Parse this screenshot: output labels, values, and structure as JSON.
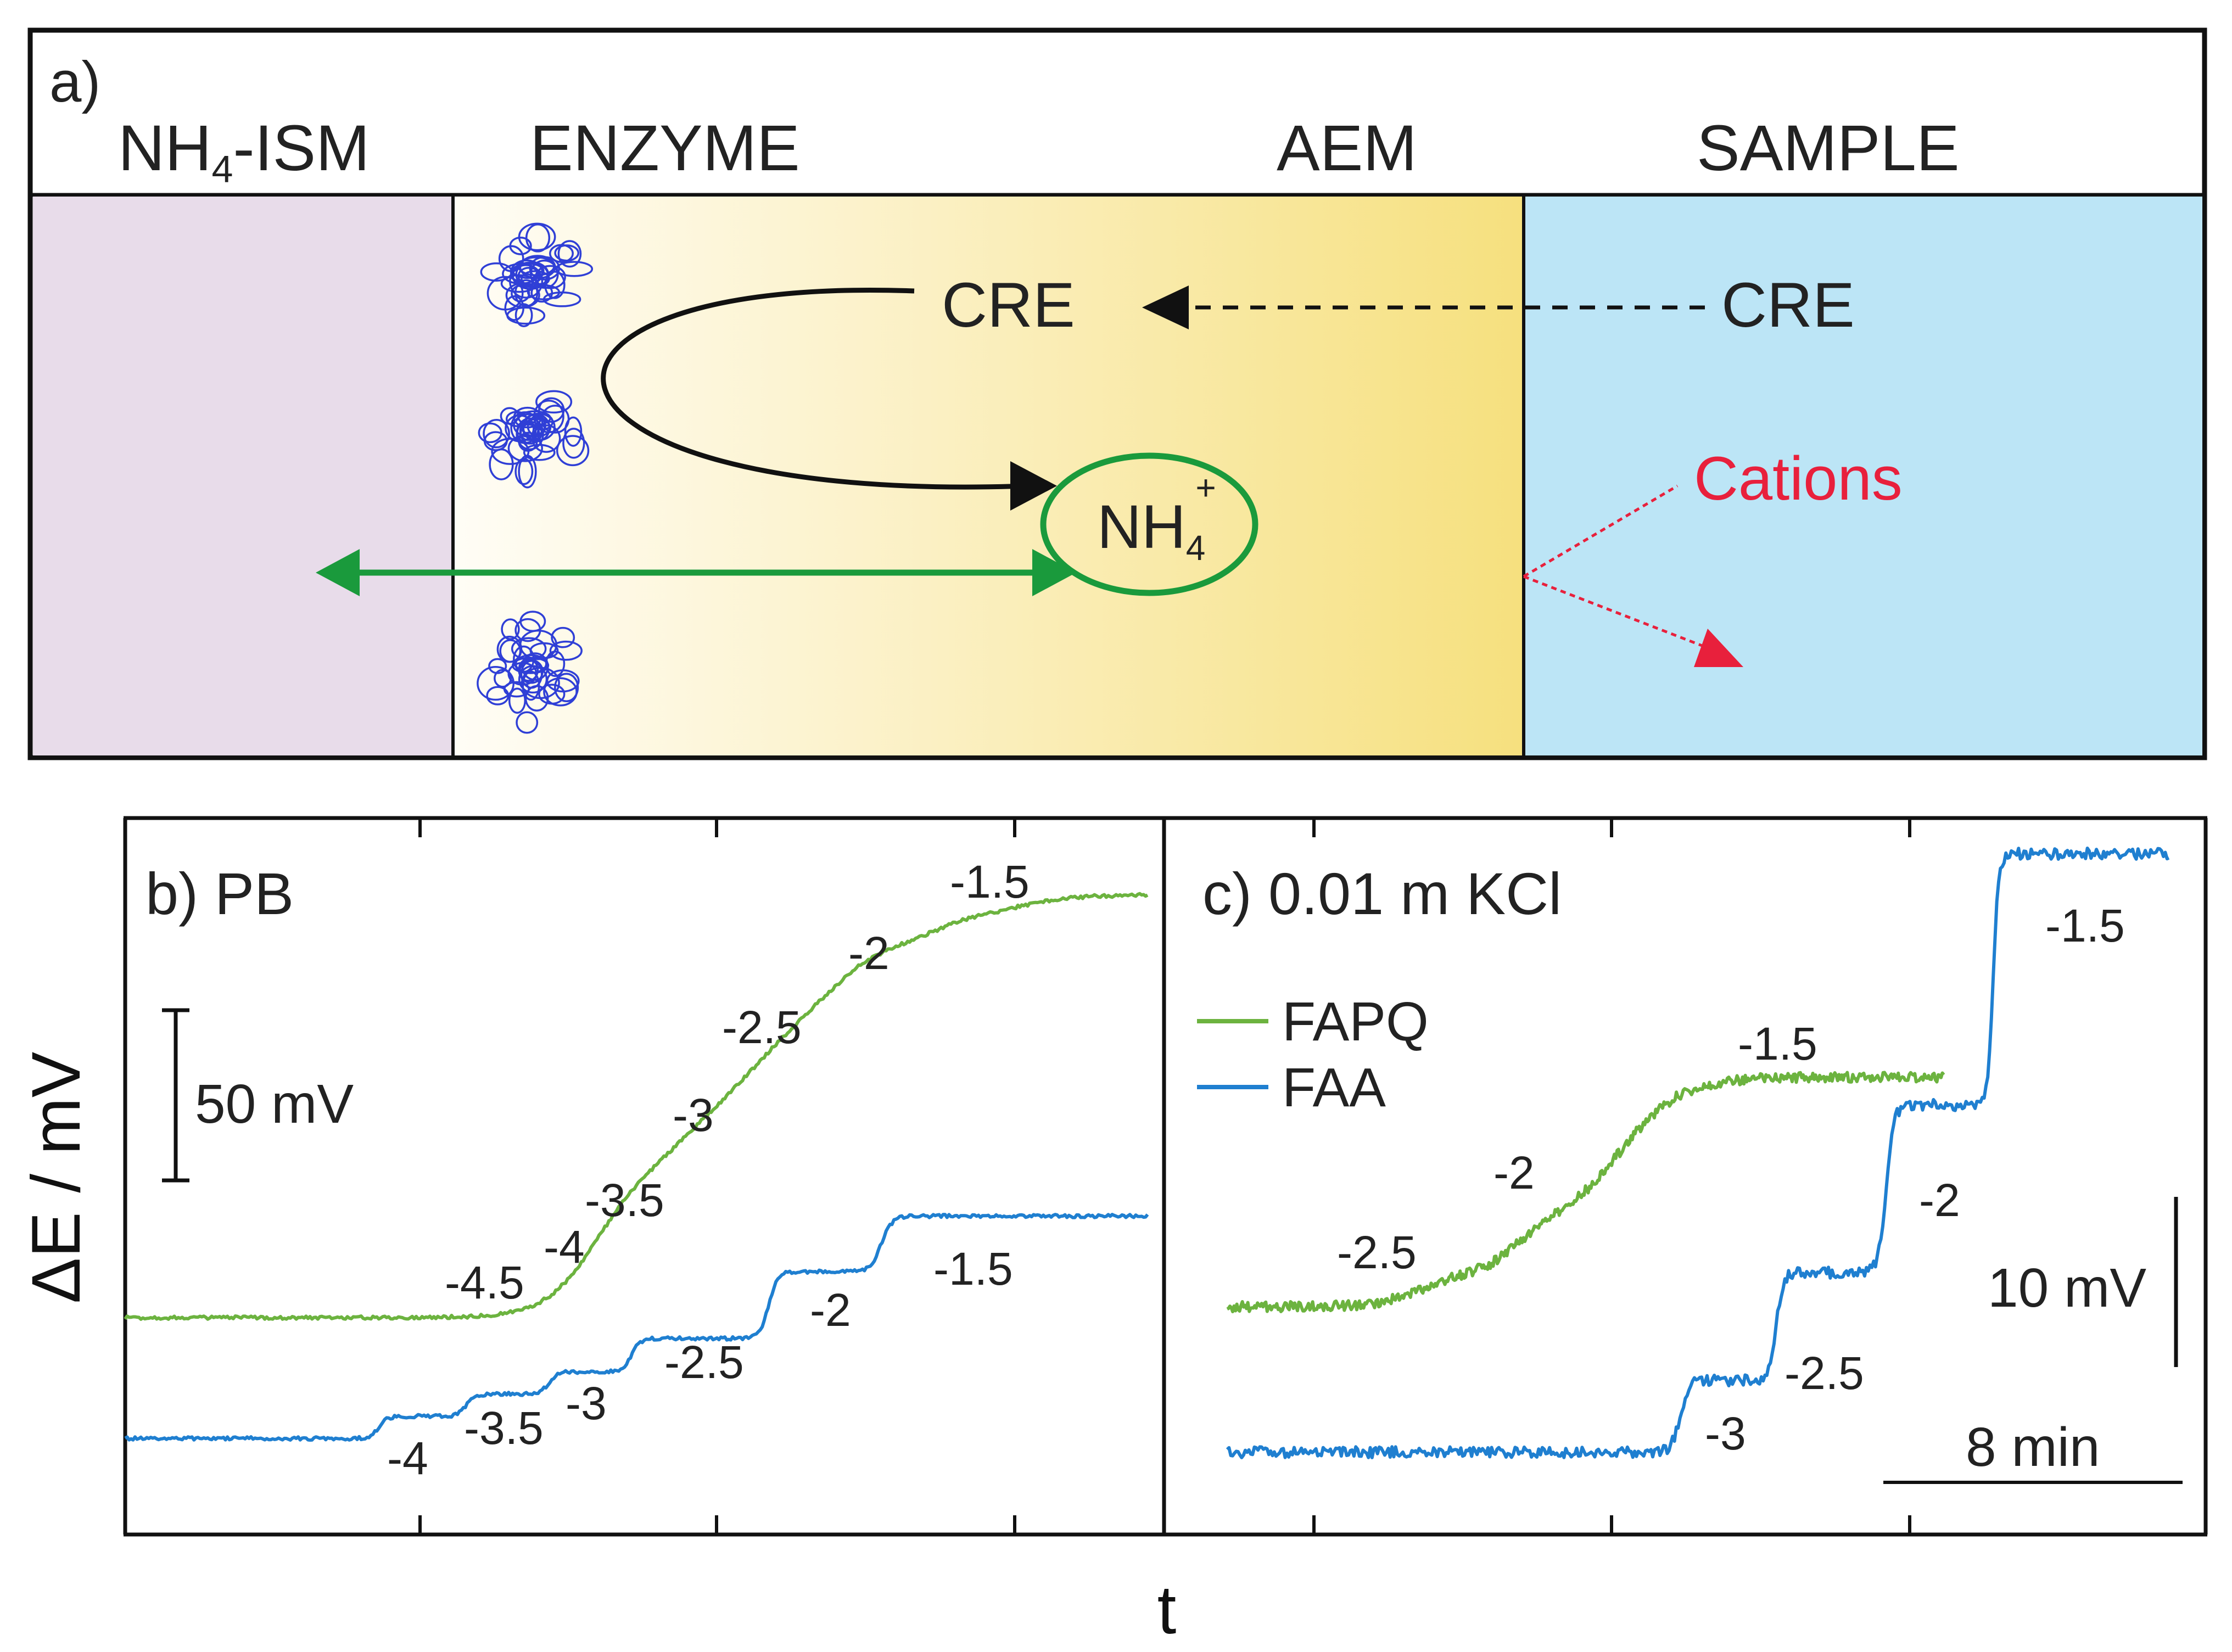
{
  "panel_a": {
    "label": "a)",
    "headers": {
      "ism_main": "NH",
      "ism_sub": "4",
      "ism_rest": "-ISM",
      "enzyme": "ENZYME",
      "aem": "AEM",
      "sample": "SAMPLE"
    },
    "cre_inner": "CRE",
    "cre_sample": "CRE",
    "nh4_main": "NH",
    "nh4_sub": "4",
    "nh4_sup": "+",
    "cations": "Cations",
    "colors": {
      "ism": "#e8dcea",
      "enzyme_start": "#fffdf5",
      "aem_end": "#f5df7a",
      "sample": "#bce5f6",
      "ammonium": "#1a9a3c",
      "cations": "#e8203c",
      "enzyme_blobs": "#2f3fd6"
    }
  },
  "chart_data": [
    {
      "type": "line",
      "title": "b) PB",
      "ylabel": "ΔE / mV",
      "xlabel": "t",
      "scale_bar": "50 mV",
      "series": [
        {
          "name": "FAPQ",
          "color": "#6cb33f",
          "step_labels": [
            "-4.5",
            "-4",
            "-3.5",
            "-3",
            "-2.5",
            "-2",
            "-1.5"
          ],
          "relative_levels": [
            0,
            0.3,
            0.55,
            0.75,
            0.88,
            0.95,
            1
          ]
        },
        {
          "name": "FAA",
          "color": "#1f7fd0",
          "step_labels": [
            "-4",
            "-3.5",
            "-3",
            "-2.5",
            "-2",
            "-1.5"
          ],
          "relative_levels": [
            0,
            0.1,
            0.2,
            0.3,
            0.45,
            0.75,
            1
          ]
        }
      ]
    },
    {
      "type": "line",
      "title": "c) 0.01 m KCl",
      "xlabel": "t",
      "scale_bar_v": "10 mV",
      "scale_bar_t": "8 min",
      "legend": [
        "FAPQ",
        "FAA"
      ],
      "series": [
        {
          "name": "FAPQ",
          "color": "#6cb33f",
          "step_labels": [
            "-2.5",
            "-2",
            "-1.5"
          ],
          "relative_levels": [
            0,
            0.15,
            0.35,
            1
          ]
        },
        {
          "name": "FAA",
          "color": "#1f7fd0",
          "step_labels": [
            "-3",
            "-2.5",
            "-2",
            "-1.5"
          ],
          "relative_levels": [
            0,
            0.12,
            0.3,
            0.58,
            1
          ]
        }
      ]
    }
  ]
}
